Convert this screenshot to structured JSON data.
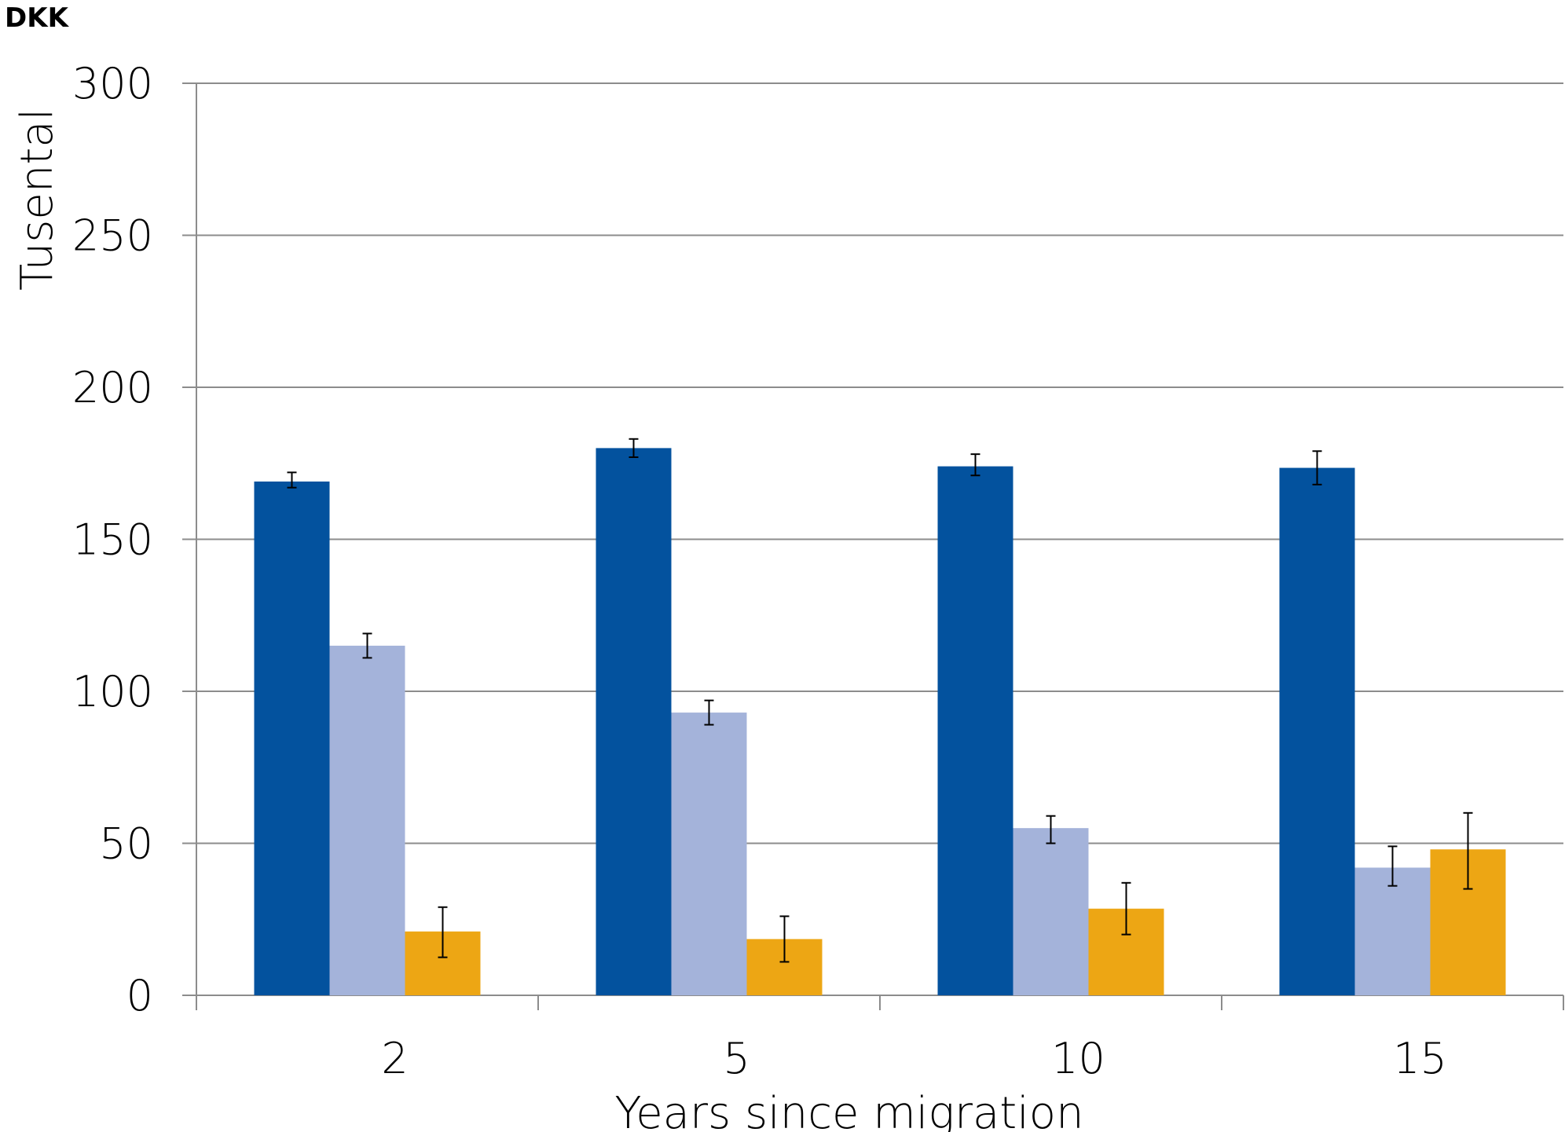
{
  "chart_data": {
    "type": "bar",
    "unit_label": "DKK",
    "ylabel": "Tusental",
    "xlabel": "Years since migration",
    "categories": [
      "2",
      "5",
      "10",
      "15"
    ],
    "ylim": [
      0,
      300
    ],
    "yticks": [
      "0",
      "50",
      "100",
      "150",
      "200",
      "250",
      "300"
    ],
    "grid": true,
    "series": [
      {
        "color": "#03529E",
        "values": [
          169,
          180,
          174,
          173.5
        ],
        "error": [
          [
            167,
            172
          ],
          [
            177,
            183
          ],
          [
            171,
            178
          ],
          [
            168,
            179
          ]
        ]
      },
      {
        "color": "#A4B3DA",
        "values": [
          115,
          93,
          55,
          42
        ],
        "error": [
          [
            111,
            119
          ],
          [
            89,
            97
          ],
          [
            50,
            59
          ],
          [
            36,
            49
          ]
        ]
      },
      {
        "color": "#EDA614",
        "values": [
          21,
          18.5,
          28.5,
          48
        ],
        "error": [
          [
            12.5,
            29
          ],
          [
            11,
            26
          ],
          [
            20,
            37
          ],
          [
            35,
            60
          ]
        ]
      }
    ]
  }
}
